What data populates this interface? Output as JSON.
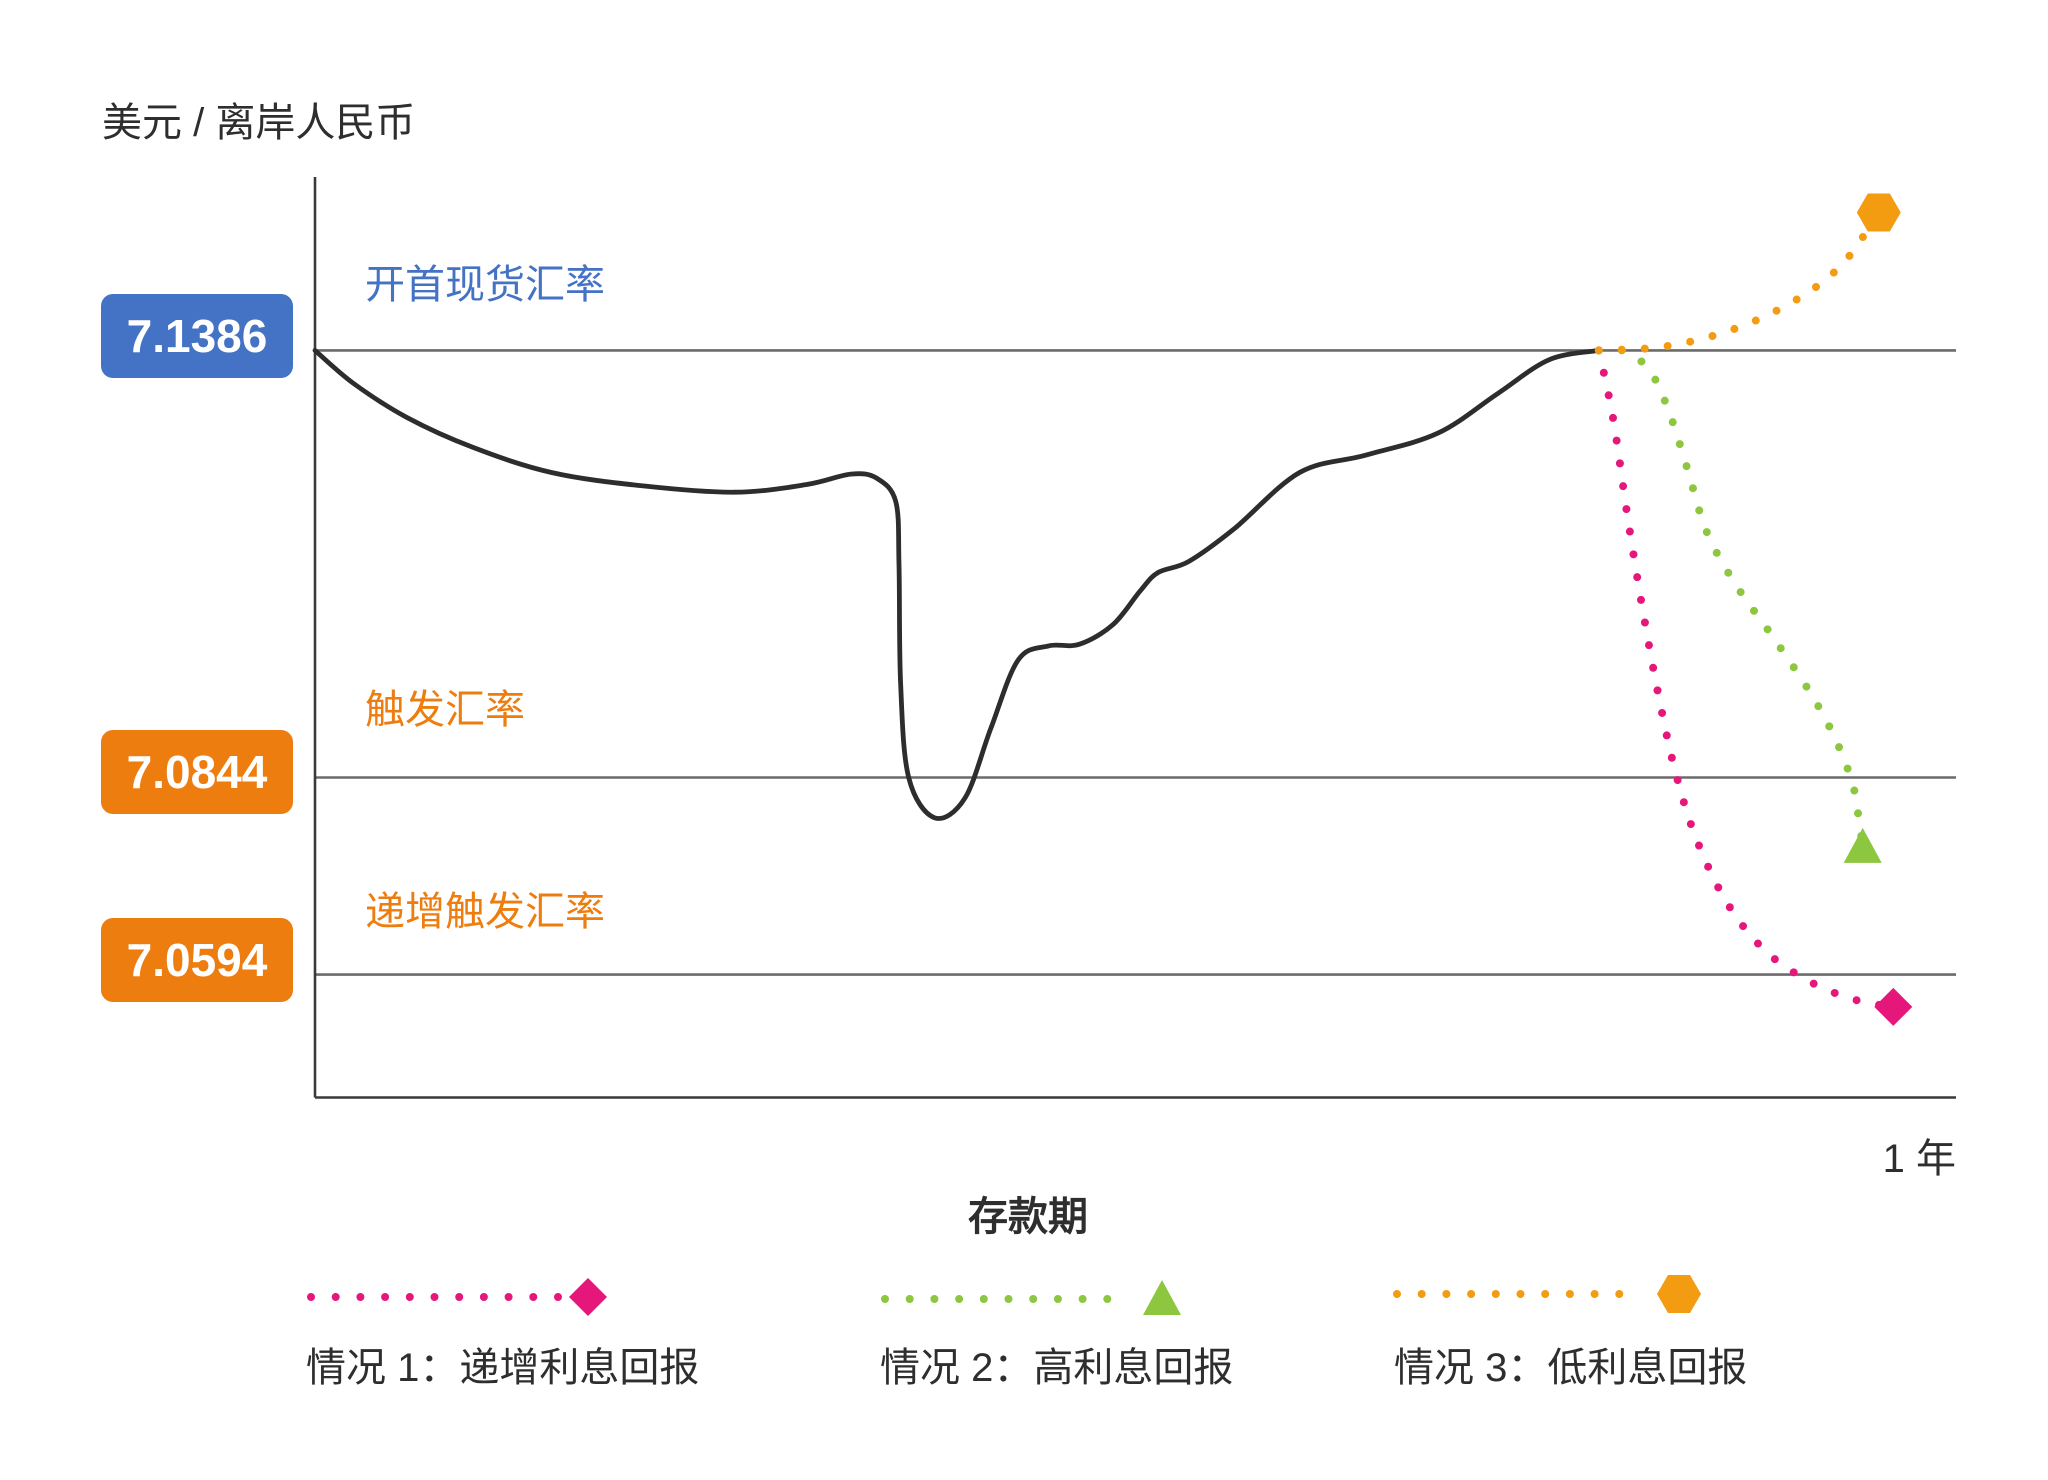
{
  "chart_data": {
    "type": "line",
    "ylabel": "美元 / 离岸人民币",
    "xlabel": "存款期",
    "xticks": [
      1
    ],
    "xtick_labels": [
      "1 年"
    ],
    "xlim": [
      0,
      1.02
    ],
    "ylim": [
      7.0438,
      7.1606
    ],
    "grid": false,
    "reference_lines": [
      {
        "label": "开首现货汇率",
        "value": 7.1386,
        "color": "#4472c4"
      },
      {
        "label": "触发汇率",
        "value": 7.0844,
        "color": "#ee7d0f"
      },
      {
        "label": "递增触发汇率",
        "value": 7.0594,
        "color": "#ee7d0f"
      }
    ],
    "series": [
      {
        "line_style": "solid",
        "color": "#2d2d2d",
        "x": [
          0,
          0.024,
          0.057,
          0.098,
          0.147,
          0.204,
          0.261,
          0.306,
          0.333,
          0.349,
          0.361,
          0.363,
          0.364,
          0.369,
          0.385,
          0.404,
          0.42,
          0.437,
          0.456,
          0.475,
          0.496,
          0.513,
          0.524,
          0.543,
          0.571,
          0.612,
          0.653,
          0.698,
          0.735,
          0.767,
          0.798
        ],
        "y": [
          7.1386,
          7.1344,
          7.1301,
          7.1263,
          7.1231,
          7.1214,
          7.1206,
          7.1216,
          7.1229,
          7.1224,
          7.1194,
          7.1114,
          7.0964,
          7.0844,
          7.0793,
          7.0818,
          7.0906,
          7.0993,
          7.1011,
          7.1013,
          7.1038,
          7.1081,
          7.1104,
          7.1118,
          7.1159,
          7.1231,
          7.1253,
          7.1281,
          7.1331,
          7.1374,
          7.1386
        ]
      },
      {
        "name": "情况 1：递增利息回报",
        "line_style": "dotted",
        "marker": "diamond",
        "color": "#e6177b",
        "x": [
          0.798,
          0.807,
          0.816,
          0.826,
          0.836,
          0.846,
          0.859,
          0.878,
          0.902,
          0.931,
          0.959,
          0.981
        ],
        "y": [
          7.1386,
          7.1298,
          7.1173,
          7.1048,
          7.0939,
          7.0848,
          7.0764,
          7.0684,
          7.0623,
          7.0583,
          7.0561,
          7.0553
        ]
      },
      {
        "name": "情况 2：高利息回报",
        "line_style": "dotted",
        "marker": "triangle",
        "color": "#8dc63f",
        "x": [
          0.798,
          0.816,
          0.831,
          0.842,
          0.853,
          0.865,
          0.883,
          0.906,
          0.929,
          0.945,
          0.956,
          0.96,
          0.962
        ],
        "y": [
          7.1386,
          7.1384,
          7.1356,
          7.1306,
          7.1236,
          7.1156,
          7.1089,
          7.1023,
          7.0953,
          7.0893,
          7.0834,
          7.0784,
          7.0756
        ]
      },
      {
        "name": "情况 3：低利息回报",
        "line_style": "dotted",
        "marker": "hexagon",
        "color": "#f39c12",
        "x": [
          0.798,
          0.831,
          0.859,
          0.886,
          0.91,
          0.934,
          0.953,
          0.972
        ],
        "y": [
          7.1386,
          7.1389,
          7.1399,
          7.1416,
          7.1438,
          7.1468,
          7.1504,
          7.1561
        ]
      }
    ],
    "legend": {
      "position": "bottom"
    }
  }
}
